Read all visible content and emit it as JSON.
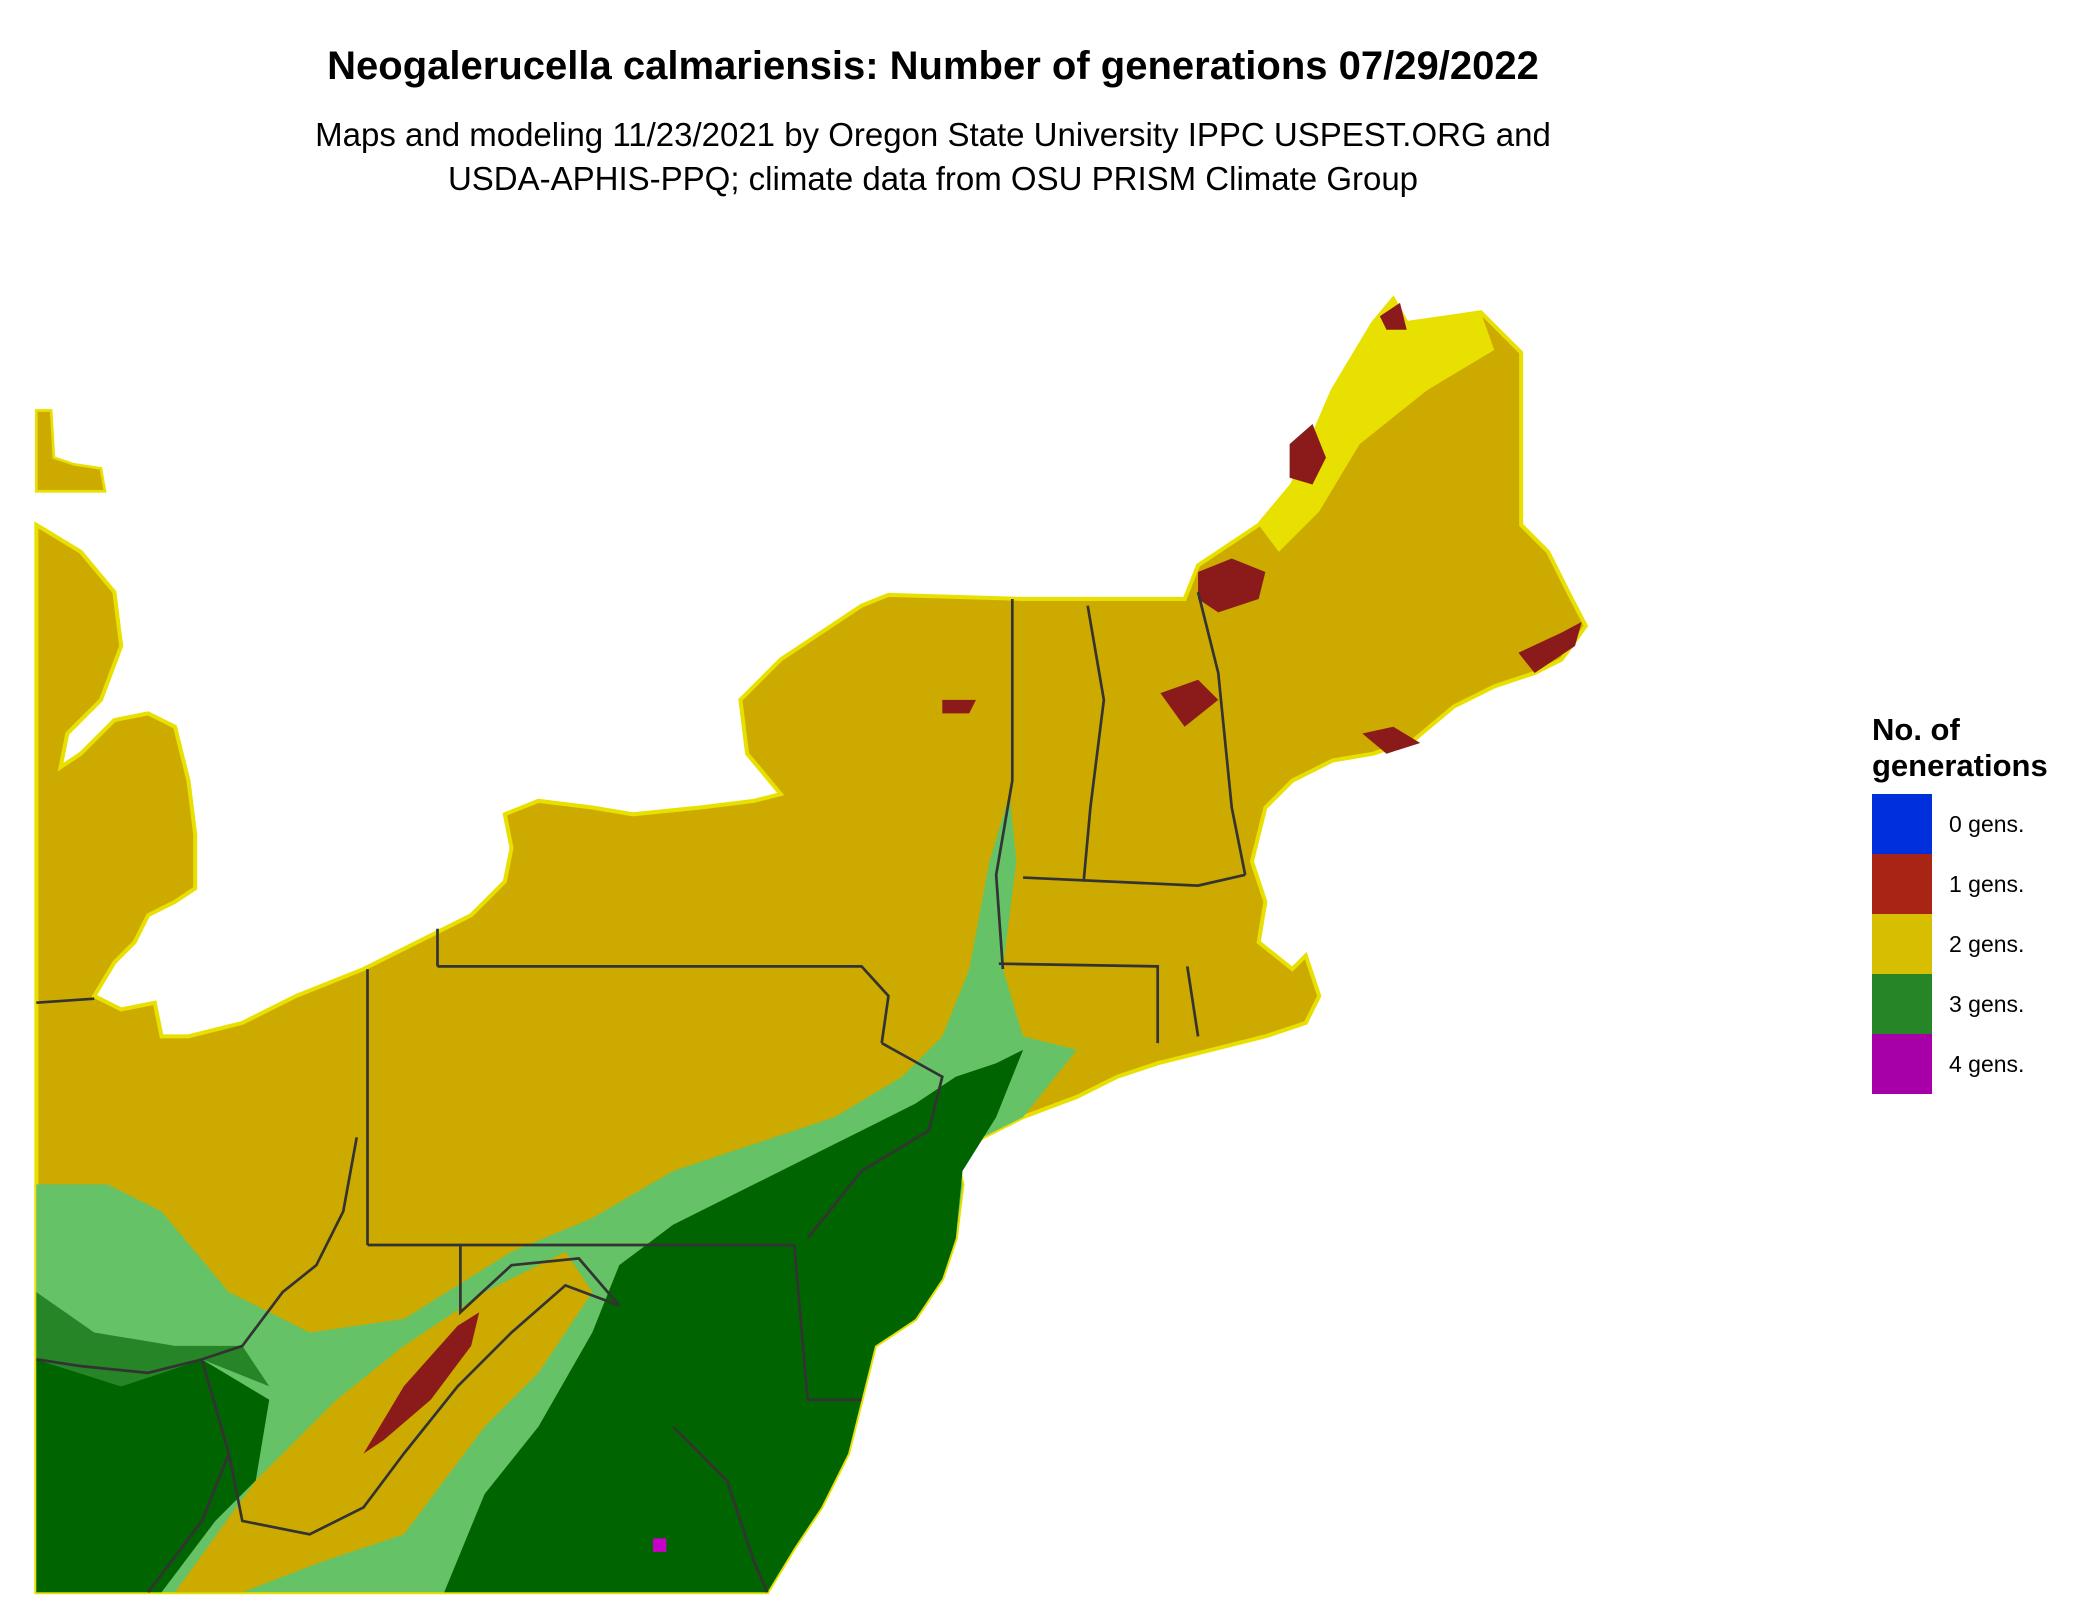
{
  "title": "Neogalerucella calmariensis: Number of generations 07/29/2022",
  "subtitle": [
    "Maps and modeling 11/23/2021 by Oregon State University IPPC USPEST.ORG and",
    "USDA-APHIS-PPQ; climate data from OSU PRISM Climate Group"
  ],
  "legend": {
    "title": "No. of generations",
    "items": [
      {
        "label": "0 gens.",
        "color": "#0030DC"
      },
      {
        "label": "1 gens.",
        "color": "#A82414"
      },
      {
        "label": "2 gens.",
        "color": "#D8BE00"
      },
      {
        "label": "3 gens.",
        "color": "#268526"
      },
      {
        "label": "4 gens.",
        "color": "#A800A8"
      }
    ]
  },
  "map_colors": {
    "two_gens_land": "#CDAA00",
    "one_gen_patches": "#8B1A1A",
    "three_gens_dark": "#006400",
    "three_gens_light": "#66C266",
    "bright_yellow": "#E8E000",
    "four_gens": "#C800C8",
    "state_lines": "#333333"
  }
}
